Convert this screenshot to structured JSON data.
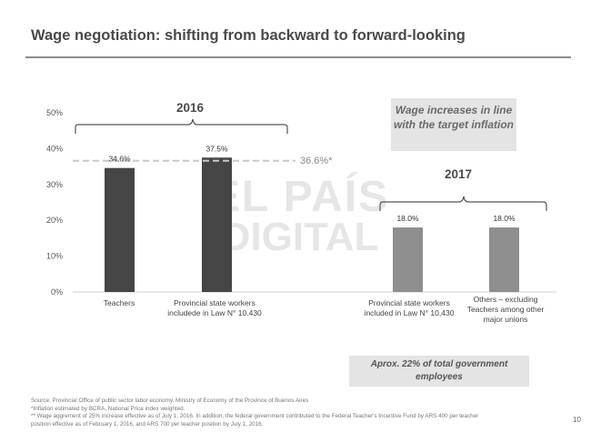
{
  "slide": {
    "title": "Wage negotiation: shifting from backward to forward-looking",
    "page_number": "10"
  },
  "chart_data": {
    "type": "bar",
    "title": "Wage negotiation: shifting from backward to forward-looking",
    "ylim": [
      0,
      50
    ],
    "yticks": [
      0,
      10,
      20,
      30,
      40,
      50
    ],
    "ytick_labels": [
      "0%",
      "10%",
      "20%",
      "30%",
      "40%",
      "50%"
    ],
    "grid": false,
    "groups": [
      {
        "year": "2016",
        "categories": [
          "Teachers",
          "Provincial state workers includede in Law N° 10.430"
        ]
      },
      {
        "year": "2017",
        "categories": [
          "Provincial state workers included in Law N° 10,430",
          "Others – excluding Teachers among other major unions"
        ]
      }
    ],
    "bars": [
      {
        "category": "Teachers",
        "group": "2016",
        "value": 34.6,
        "label": "34.6%",
        "color": "#454545"
      },
      {
        "category": "Provincial state workers includede in Law N° 10.430",
        "group": "2016",
        "value": 37.5,
        "label": "37.5%",
        "color": "#454545"
      },
      {
        "category": "Provincial state workers included in Law N° 10,430",
        "group": "2017",
        "value": 18.0,
        "label": "18.0%",
        "color": "#8f8f8f"
      },
      {
        "category": "Others – excluding Teachers among other major unions",
        "group": "2017",
        "value": 18.0,
        "label": "18.0%",
        "color": "#8f8f8f"
      }
    ],
    "reference_line": {
      "value": 36.6,
      "label": "36.6%*",
      "style": "dashed",
      "color": "#c8c8c8"
    },
    "annotations": {
      "target_note": "Wage increases in line with the target inflation",
      "share_note": "Aprox. 22% of total government employees"
    },
    "watermark": {
      "line1": "EL PAÍS",
      "line2": "DIGITAL"
    }
  },
  "footnotes": [
    "Source: Provincial Office of public sector labor economy. Ministry of Economy of the Province of Buenos Aires",
    "*Inflation estimated by BCRA, National Price index weighted.",
    "** Wage aggrement of 25% increase effective as of July 1, 2016. In addition, the federal government contributed to the Federal Teacher's Incentive Fund by ARS 400 per teacher",
    "position effective as of February 1, 2016, and ARS 700 per teacher position by July 1, 2016."
  ]
}
